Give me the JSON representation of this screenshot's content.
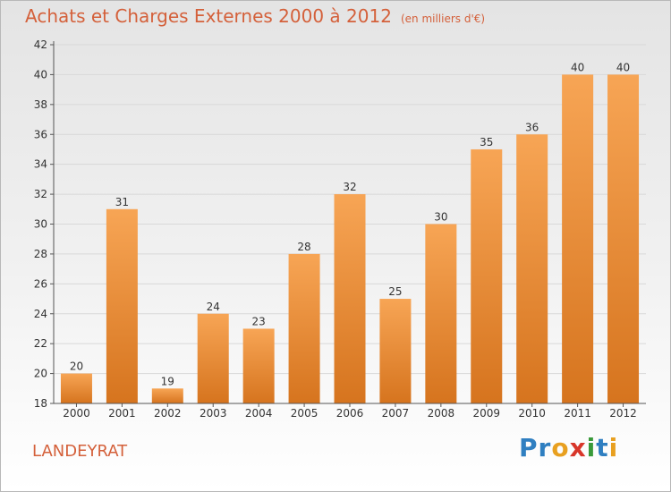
{
  "header": {
    "title": "Achats et Charges Externes 2000 à 2012",
    "unit": "(en milliers d'€)"
  },
  "footer": {
    "place": "LANDEYRAT",
    "logo": "Proxiti"
  },
  "colors": {
    "bar_light": "#f7a555",
    "bar_dark": "#d6741e",
    "title": "#d4603a"
  },
  "chart_data": {
    "type": "bar",
    "title": "Achats et Charges Externes 2000 à 2012",
    "xlabel": "",
    "ylabel": "",
    "categories": [
      "2000",
      "2001",
      "2002",
      "2003",
      "2004",
      "2005",
      "2006",
      "2007",
      "2008",
      "2009",
      "2010",
      "2011",
      "2012"
    ],
    "values": [
      20,
      31,
      19,
      24,
      23,
      28,
      32,
      25,
      30,
      35,
      36,
      40,
      40
    ],
    "ylim": [
      18,
      42
    ],
    "yticks": [
      18,
      20,
      22,
      24,
      26,
      28,
      30,
      32,
      34,
      36,
      38,
      40,
      42
    ],
    "grid": true,
    "legend": "none"
  }
}
